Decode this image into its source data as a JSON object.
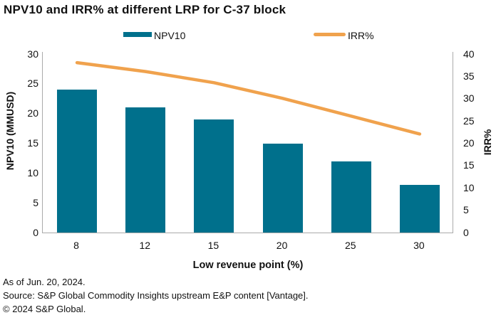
{
  "title": "NPV10 and IRR% at different LRP for C-37 block",
  "legend": {
    "npv10_label": "NPV10",
    "irr_label": "IRR%"
  },
  "colors": {
    "bar": "#00708C",
    "line": "#F0A24D",
    "axis": "#AAAAAA"
  },
  "chart_data": {
    "type": "bar+line combo",
    "categories": [
      "8",
      "12",
      "15",
      "20",
      "25",
      "30"
    ],
    "series": [
      {
        "name": "NPV10",
        "type": "bar",
        "axis": "left",
        "values": [
          24,
          21,
          19,
          15,
          12,
          8
        ]
      },
      {
        "name": "IRR%",
        "type": "line",
        "axis": "right",
        "values": [
          38,
          36,
          33.5,
          30,
          26,
          22
        ]
      }
    ],
    "title": "NPV10 and IRR% at different LRP for C-37 block",
    "xlabel": "Low revenue point (%)",
    "ylabel_left": "NPV10 (MMUSD)",
    "ylabel_right": "IRR%",
    "ylim_left": [
      0,
      30
    ],
    "ytick_step_left": 5,
    "ylim_right": [
      0,
      40
    ],
    "ytick_step_right": 5,
    "grid": false,
    "legend_position": "top"
  },
  "footer": {
    "line1": "As of Jun. 20, 2024.",
    "line2": "Source: S&P Global Commodity Insights upstream E&P content [Vantage].",
    "line3": "© 2024 S&P Global."
  }
}
